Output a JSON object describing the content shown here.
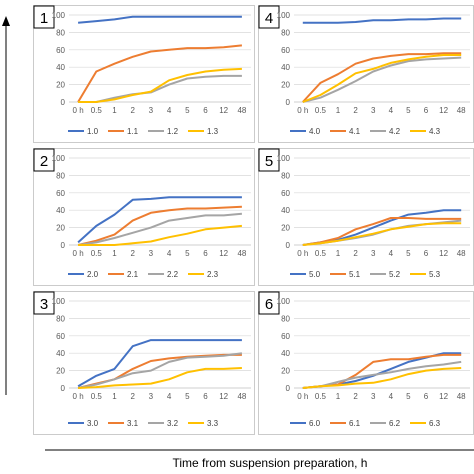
{
  "figure": {
    "xlabel": "Time from suspension preparation, h"
  },
  "colors": {
    "s0": "#4472C4",
    "s1": "#ED7D31",
    "s2": "#A5A5A5",
    "s3": "#FFC000",
    "grid": "#D9D9D9",
    "border": "#BFBFBF"
  },
  "chart_data": [
    {
      "type": "line",
      "panel": "1",
      "categories": [
        "0 h",
        "0.5",
        "1",
        "2",
        "3",
        "4",
        "5",
        "6",
        "12",
        "48"
      ],
      "ylim": [
        0,
        100
      ],
      "yticks": [
        0,
        20,
        40,
        60,
        80,
        100
      ],
      "grid": "horizontal",
      "legend": "bottom",
      "series": [
        {
          "name": "1.0",
          "values": [
            91,
            93,
            95,
            98,
            98,
            98,
            98,
            98,
            98,
            98
          ]
        },
        {
          "name": "1.1",
          "values": [
            0,
            35,
            44,
            52,
            58,
            60,
            62,
            62,
            63,
            65
          ]
        },
        {
          "name": "1.2",
          "values": [
            0,
            0,
            5,
            9,
            11,
            20,
            27,
            29,
            30,
            30
          ]
        },
        {
          "name": "1.3",
          "values": [
            0,
            0,
            3,
            8,
            12,
            25,
            31,
            35,
            37,
            38
          ]
        }
      ]
    },
    {
      "type": "line",
      "panel": "4",
      "categories": [
        "0 h",
        "0.5",
        "1",
        "2",
        "3",
        "4",
        "5",
        "6",
        "12",
        "48"
      ],
      "ylim": [
        0,
        100
      ],
      "yticks": [
        0,
        20,
        40,
        60,
        80,
        100
      ],
      "grid": "horizontal",
      "legend": "bottom",
      "series": [
        {
          "name": "4.0",
          "values": [
            91,
            91,
            91,
            92,
            94,
            94,
            95,
            95,
            96,
            96
          ]
        },
        {
          "name": "4.1",
          "values": [
            0,
            22,
            32,
            44,
            50,
            53,
            55,
            55,
            56,
            56
          ]
        },
        {
          "name": "4.2",
          "values": [
            0,
            5,
            14,
            24,
            35,
            42,
            47,
            49,
            50,
            51
          ]
        },
        {
          "name": "4.3",
          "values": [
            0,
            8,
            20,
            33,
            38,
            45,
            49,
            52,
            54,
            54
          ]
        }
      ]
    },
    {
      "type": "line",
      "panel": "2",
      "categories": [
        "0 h",
        "0.5",
        "1",
        "2",
        "3",
        "4",
        "5",
        "6",
        "12",
        "48"
      ],
      "ylim": [
        0,
        100
      ],
      "yticks": [
        0,
        20,
        40,
        60,
        80,
        100
      ],
      "grid": "horizontal",
      "legend": "bottom",
      "series": [
        {
          "name": "2.0",
          "values": [
            3,
            22,
            35,
            52,
            53,
            55,
            55,
            55,
            55,
            55
          ]
        },
        {
          "name": "2.1",
          "values": [
            0,
            5,
            12,
            28,
            37,
            40,
            42,
            42,
            43,
            44
          ]
        },
        {
          "name": "2.2",
          "values": [
            0,
            3,
            8,
            14,
            20,
            28,
            31,
            34,
            34,
            36
          ]
        },
        {
          "name": "2.3",
          "values": [
            0,
            0,
            0,
            2,
            4,
            9,
            13,
            18,
            20,
            22
          ]
        }
      ]
    },
    {
      "type": "line",
      "panel": "5",
      "categories": [
        "0 h",
        "0.5",
        "1",
        "2",
        "3",
        "4",
        "5",
        "6",
        "12",
        "48"
      ],
      "ylim": [
        0,
        100
      ],
      "yticks": [
        0,
        20,
        40,
        60,
        80,
        100
      ],
      "grid": "horizontal",
      "legend": "bottom",
      "series": [
        {
          "name": "5.0",
          "values": [
            0,
            3,
            6,
            12,
            20,
            28,
            35,
            37,
            40,
            40
          ]
        },
        {
          "name": "5.1",
          "values": [
            0,
            3,
            8,
            18,
            24,
            31,
            31,
            30,
            30,
            30
          ]
        },
        {
          "name": "5.2",
          "values": [
            0,
            2,
            5,
            8,
            12,
            18,
            22,
            24,
            26,
            28
          ]
        },
        {
          "name": "5.3",
          "values": [
            0,
            2,
            5,
            9,
            13,
            18,
            21,
            24,
            25,
            25
          ]
        }
      ]
    },
    {
      "type": "line",
      "panel": "3",
      "categories": [
        "0 h",
        "0.5",
        "1",
        "2",
        "3",
        "4",
        "5",
        "6",
        "12",
        "48"
      ],
      "ylim": [
        0,
        100
      ],
      "yticks": [
        0,
        20,
        40,
        60,
        80,
        100
      ],
      "grid": "horizontal",
      "legend": "bottom",
      "series": [
        {
          "name": "3.0",
          "values": [
            2,
            14,
            22,
            48,
            55,
            55,
            55,
            55,
            55,
            55
          ]
        },
        {
          "name": "3.1",
          "values": [
            0,
            5,
            10,
            22,
            31,
            34,
            36,
            37,
            38,
            38
          ]
        },
        {
          "name": "3.2",
          "values": [
            0,
            4,
            10,
            17,
            20,
            30,
            35,
            36,
            37,
            40
          ]
        },
        {
          "name": "3.3",
          "values": [
            0,
            1,
            3,
            4,
            5,
            10,
            18,
            22,
            22,
            23
          ]
        }
      ]
    },
    {
      "type": "line",
      "panel": "6",
      "categories": [
        "0 h",
        "0.5",
        "1",
        "2",
        "3",
        "4",
        "5",
        "6",
        "12",
        "48"
      ],
      "ylim": [
        0,
        100
      ],
      "yticks": [
        0,
        20,
        40,
        60,
        80,
        100
      ],
      "grid": "horizontal",
      "legend": "bottom",
      "series": [
        {
          "name": "6.0",
          "values": [
            0,
            2,
            4,
            8,
            14,
            22,
            30,
            35,
            40,
            40
          ]
        },
        {
          "name": "6.1",
          "values": [
            0,
            2,
            4,
            15,
            30,
            33,
            33,
            36,
            38,
            38
          ]
        },
        {
          "name": "6.2",
          "values": [
            0,
            2,
            7,
            12,
            15,
            18,
            22,
            25,
            27,
            30
          ]
        },
        {
          "name": "6.3",
          "values": [
            0,
            2,
            3,
            5,
            6,
            10,
            16,
            20,
            22,
            23
          ]
        }
      ]
    }
  ]
}
